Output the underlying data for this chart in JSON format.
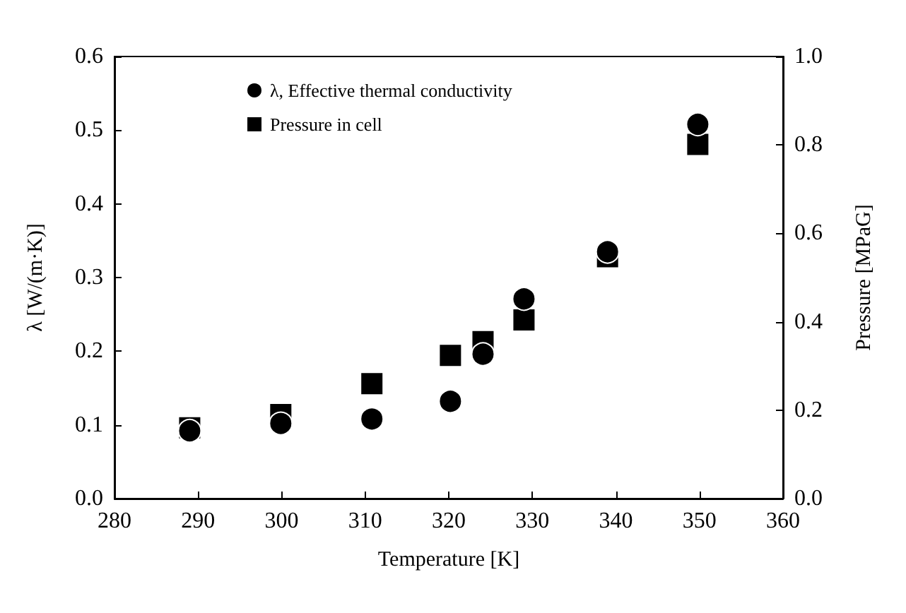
{
  "chart_data": {
    "type": "scatter",
    "xlabel": "Temperature [K]",
    "ylabel": "λ [W/(m·K)]",
    "y2label": "Pressure [MPaG]",
    "xlim": [
      280,
      360
    ],
    "xticks": [
      280,
      290,
      300,
      310,
      320,
      330,
      340,
      350,
      360
    ],
    "ylim": [
      0,
      0.6
    ],
    "yticks": [
      {
        "value": 0,
        "label": "0.0"
      },
      {
        "value": 0.1,
        "label": "0.1"
      },
      {
        "value": 0.2,
        "label": "0.2"
      },
      {
        "value": 0.3,
        "label": "0.3"
      },
      {
        "value": 0.4,
        "label": "0.4"
      },
      {
        "value": 0.5,
        "label": "0.5"
      },
      {
        "value": 0.6,
        "label": "0.6"
      }
    ],
    "y2lim": [
      0,
      1.0
    ],
    "y2ticks": [
      {
        "value": 0,
        "label": "0.0"
      },
      {
        "value": 0.2,
        "label": "0.2"
      },
      {
        "value": 0.4,
        "label": "0.4"
      },
      {
        "value": 0.6,
        "label": "0.6"
      },
      {
        "value": 0.8,
        "label": "0.8"
      },
      {
        "value": 1.0,
        "label": "1.0"
      }
    ],
    "x": [
      289.0,
      299.9,
      310.8,
      320.2,
      324.1,
      329.0,
      339.0,
      349.8
    ],
    "series": [
      {
        "name": "λ, Effective thermal conductivity",
        "color": "#000000",
        "marker": "circle",
        "values": [
          0.092,
          0.102,
          0.108,
          0.132,
          0.196,
          0.271,
          0.335,
          0.508
        ]
      },
      {
        "name": "Pressure in cell",
        "color": "#000000",
        "marker": "square",
        "axis": "y2",
        "values": [
          0.16,
          0.19,
          0.26,
          0.324,
          0.355,
          0.404,
          0.547,
          0.801
        ]
      }
    ],
    "legend": "top left",
    "grid": false
  }
}
